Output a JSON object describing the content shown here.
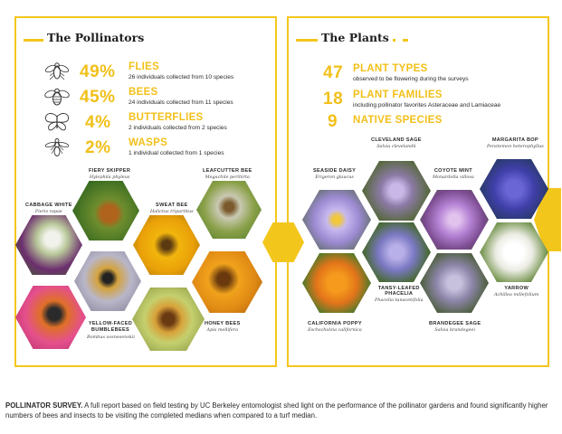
{
  "pollinators": {
    "title": "The Pollinators",
    "stats": [
      {
        "percent": "49%",
        "name": "FLIES",
        "desc": "26 individuals collected from 10 species",
        "icon": "fly-icon"
      },
      {
        "percent": "45%",
        "name": "BEES",
        "desc": "24 individuals collected from 11 species",
        "icon": "bee-icon"
      },
      {
        "percent": "4%",
        "name": "BUTTERFLIES",
        "desc": "2 individuals collected from 2 species",
        "icon": "butterfly-icon"
      },
      {
        "percent": "2%",
        "name": "WASPS",
        "desc": "1 individual collected from 1 species",
        "icon": "wasp-icon"
      }
    ],
    "species": [
      {
        "name": "FIERY SKIPPER",
        "sci": "Hylephila phyleus"
      },
      {
        "name": "LEAFCUTTER BEE",
        "sci": "Megachile perihirta"
      },
      {
        "name": "CABBAGE WHITE",
        "sci": "Pieris rapae"
      },
      {
        "name": "SWEAT BEE",
        "sci": "Halictus tripartitus"
      },
      {
        "name": "YELLOW-FACED BUMBLEBEES",
        "sci": "Bombus vosnesenskii"
      },
      {
        "name": "HONEY BEES",
        "sci": "Apis mellifera"
      }
    ]
  },
  "plants": {
    "title": "The Plants",
    "stats": [
      {
        "number": "47",
        "name": "PLANT TYPES",
        "desc": "observed to be flowering during the surveys"
      },
      {
        "number": "18",
        "name": "PLANT FAMILIES",
        "desc": "including pollinator favorites Asteraceae and Lamiaceae"
      },
      {
        "number": "9",
        "name": "NATIVE SPECIES",
        "desc": ""
      }
    ],
    "species": [
      {
        "name": "CLEVELAND SAGE",
        "sci": "Salvia clevelandii"
      },
      {
        "name": "MARGARITA BOP",
        "sci": "Penstemon heterophyllus"
      },
      {
        "name": "SEASIDE DAISY",
        "sci": "Erigeron glaucus"
      },
      {
        "name": "COYOTE MINT",
        "sci": "Monardella villosa"
      },
      {
        "name": "YARROW",
        "sci": "Achillea millefolium"
      },
      {
        "name": "TANSY-LEAFED",
        "sci": "Phacelia tanacetifolia",
        "name2": "PHACELIA"
      },
      {
        "name": "CALIFORNIA POPPY",
        "sci": "Eschscholzia californica"
      },
      {
        "name": "BRANDEGEE SAGE",
        "sci": "Salvia brandegeei"
      }
    ]
  },
  "caption": {
    "lead": "POLLINATOR SURVEY.",
    "text": " A full report based on field testing by UC Berkeley entomologist shed light on the performance of the pollinator gardens and found significantly higher numbers of bees and insects to be visiting the completed medians when compared to a turf median."
  },
  "colors": {
    "accent": "#f3c61c",
    "text": "#2a2a2a"
  }
}
